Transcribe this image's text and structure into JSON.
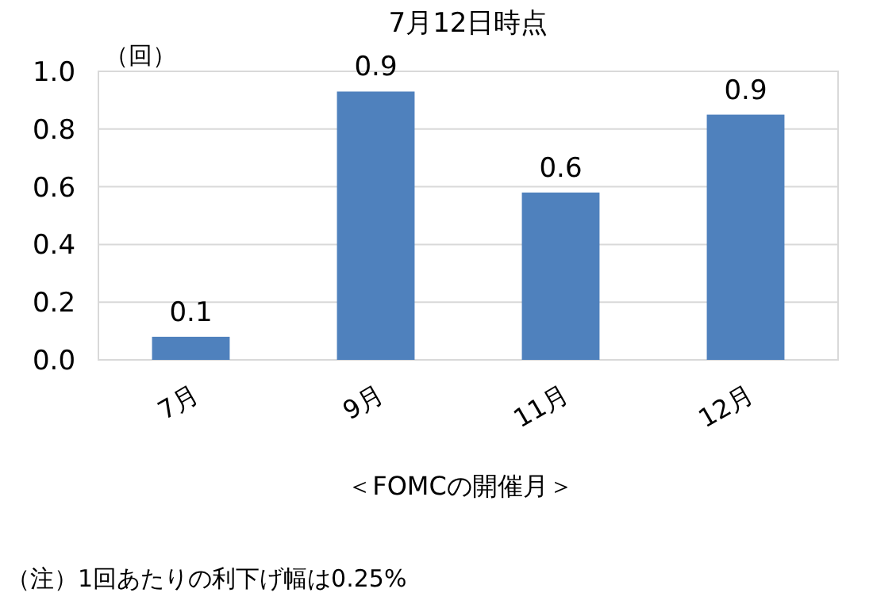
{
  "chart_data": {
    "type": "bar",
    "title": "7月12日時点",
    "ylabel": "（回）",
    "xlabel": "＜FOMCの開催月＞",
    "categories": [
      "7月",
      "9月",
      "11月",
      "12月"
    ],
    "values": [
      0.08,
      0.93,
      0.58,
      0.85
    ],
    "value_labels": [
      "0.1",
      "0.9",
      "0.6",
      "0.9"
    ],
    "color": "#4f81bd",
    "ylim": [
      0,
      1.0
    ],
    "yticks": [
      {
        "value": 0,
        "label": "0.0"
      },
      0.2,
      0.4,
      0.6,
      0.8,
      {
        "value": 1.0,
        "label": "1.0"
      }
    ],
    "grid": "y",
    "annotations": [
      "（注）1回あたりの利下げ幅は0.25%"
    ]
  }
}
